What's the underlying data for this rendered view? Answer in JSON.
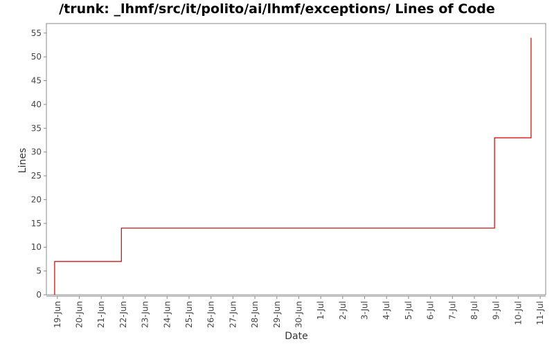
{
  "chart_data": {
    "type": "line",
    "title": "/trunk: _lhmf/src/it/polito/ai/lhmf/exceptions/ Lines of Code",
    "xlabel": "Date",
    "ylabel": "Lines",
    "ylim": [
      0,
      57
    ],
    "yticks": [
      0,
      5,
      10,
      15,
      20,
      25,
      30,
      35,
      40,
      45,
      50,
      55
    ],
    "xticks": [
      "19-Jun",
      "20-Jun",
      "21-Jun",
      "22-Jun",
      "23-Jun",
      "24-Jun",
      "25-Jun",
      "26-Jun",
      "27-Jun",
      "28-Jun",
      "29-Jun",
      "30-Jun",
      "1-Jul",
      "2-Jul",
      "3-Jul",
      "4-Jul",
      "5-Jul",
      "6-Jul",
      "7-Jul",
      "8-Jul",
      "9-Jul",
      "10-Jul",
      "11-Jul"
    ],
    "xlim": [
      "18-Jun 12:00",
      "11-Jul 06:00"
    ],
    "series": [
      {
        "color": "#cc0000",
        "step": true,
        "points": [
          {
            "x": "18-Jun 21:00",
            "y": 0
          },
          {
            "x": "18-Jun 21:00",
            "y": 7
          },
          {
            "x": "21-Jun 22:00",
            "y": 7
          },
          {
            "x": "21-Jun 22:00",
            "y": 14
          },
          {
            "x": "8-Jul 22:00",
            "y": 14
          },
          {
            "x": "8-Jul 22:00",
            "y": 33
          },
          {
            "x": "10-Jul 14:00",
            "y": 33
          },
          {
            "x": "10-Jul 14:00",
            "y": 54
          }
        ]
      }
    ],
    "grid": false
  }
}
